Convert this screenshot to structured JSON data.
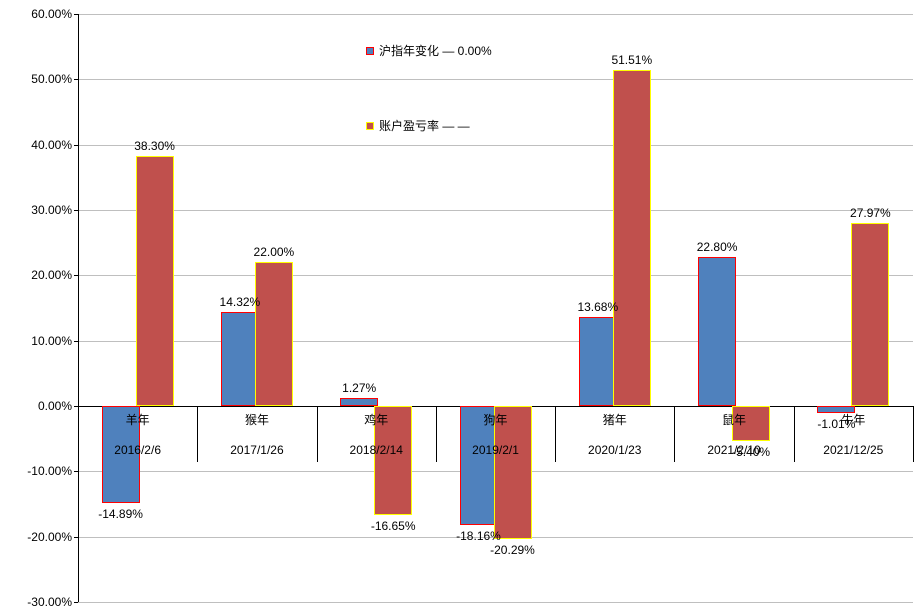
{
  "legend": {
    "items": [
      {
        "label": "沪指年变化 — 0.00%",
        "marker_fill": "#4F81BD",
        "marker_border": "#FF0000"
      },
      {
        "label": "账户盈亏率 — —",
        "marker_fill": "#C0504D",
        "marker_border": "#FFFF00"
      }
    ]
  },
  "chart_data": {
    "type": "bar",
    "title": "",
    "categories": [
      "羊年",
      "猴年",
      "鸡年",
      "狗年",
      "猪年",
      "鼠年",
      "牛年"
    ],
    "category_dates": [
      "2016/2/6",
      "2017/1/26",
      "2018/2/14",
      "2019/2/1",
      "2020/1/23",
      "2021/2/10",
      "2021/12/25"
    ],
    "series": [
      {
        "name": "沪指年变化 — 0.00%",
        "fill": "#4F81BD",
        "border": "#FF0000",
        "values": [
          -14.89,
          14.32,
          1.27,
          -18.16,
          13.68,
          22.8,
          -1.01
        ]
      },
      {
        "name": "账户盈亏率 — —",
        "fill": "#C0504D",
        "border": "#FFFF00",
        "values": [
          38.3,
          22.0,
          -16.65,
          -20.29,
          51.51,
          -5.4,
          27.97
        ]
      }
    ],
    "data_labels": [
      [
        "-14.89%",
        "14.32%",
        "1.27%",
        "-18.16%",
        "13.68%",
        "22.80%",
        "-1.01%"
      ],
      [
        "38.30%",
        "22.00%",
        "-16.65%",
        "-20.29%",
        "51.51%",
        "-5.40%",
        "27.97%"
      ]
    ],
    "ylim": [
      -30,
      60
    ],
    "ytick_step": 10,
    "ytick_labels": [
      "60.00%",
      "50.00%",
      "40.00%",
      "30.00%",
      "20.00%",
      "10.00%",
      "0.00%",
      "-10.00%",
      "-20.00%",
      "-30.00%"
    ],
    "grid": true,
    "legend_position": "inside-top-center"
  },
  "colors": {
    "background": "#FFFFFF",
    "gridline": "#BFBFBF",
    "axis": "#000000",
    "label_text": "#000000"
  }
}
